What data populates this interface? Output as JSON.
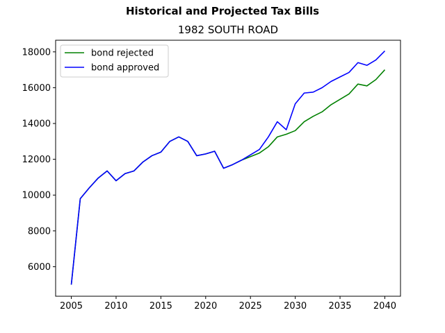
{
  "figure": {
    "suptitle": "Historical and Projected Tax Bills",
    "title": "1982 SOUTH ROAD"
  },
  "chart_data": {
    "type": "line",
    "title": "1982 SOUTH ROAD",
    "suptitle": "Historical and Projected Tax Bills",
    "xlabel": "",
    "ylabel": "",
    "xlim": [
      2003.25,
      2041.75
    ],
    "ylim": [
      4350,
      18650
    ],
    "xticks": [
      2005,
      2010,
      2015,
      2020,
      2025,
      2030,
      2035,
      2040
    ],
    "yticks": [
      6000,
      8000,
      10000,
      12000,
      14000,
      16000,
      18000
    ],
    "grid": false,
    "legend": "top-left",
    "x": [
      2005,
      2006,
      2007,
      2008,
      2009,
      2010,
      2011,
      2012,
      2013,
      2014,
      2015,
      2016,
      2017,
      2018,
      2019,
      2020,
      2021,
      2022,
      2023,
      2024,
      2025,
      2026,
      2027,
      2028,
      2029,
      2030,
      2031,
      2032,
      2033,
      2034,
      2035,
      2036,
      2037,
      2038,
      2039,
      2040
    ],
    "series": [
      {
        "name": "bond rejected",
        "color": "#008000",
        "values": [
          5000,
          9800,
          10400,
          10950,
          11350,
          10800,
          11200,
          11350,
          11850,
          12200,
          12400,
          13000,
          13250,
          13000,
          12200,
          12300,
          12450,
          11500,
          11700,
          11950,
          12150,
          12350,
          12700,
          13250,
          13400,
          13600,
          14100,
          14400,
          14650,
          15050,
          15350,
          15650,
          16200,
          16100,
          16450,
          17000
        ]
      },
      {
        "name": "bond approved",
        "color": "#0000ff",
        "values": [
          5000,
          9800,
          10400,
          10950,
          11350,
          10800,
          11200,
          11350,
          11850,
          12200,
          12400,
          13000,
          13250,
          13000,
          12200,
          12300,
          12450,
          11500,
          11700,
          11950,
          12250,
          12550,
          13250,
          14100,
          13650,
          15100,
          15700,
          15750,
          16000,
          16350,
          16600,
          16850,
          17400,
          17250,
          17550,
          18050
        ]
      }
    ]
  }
}
